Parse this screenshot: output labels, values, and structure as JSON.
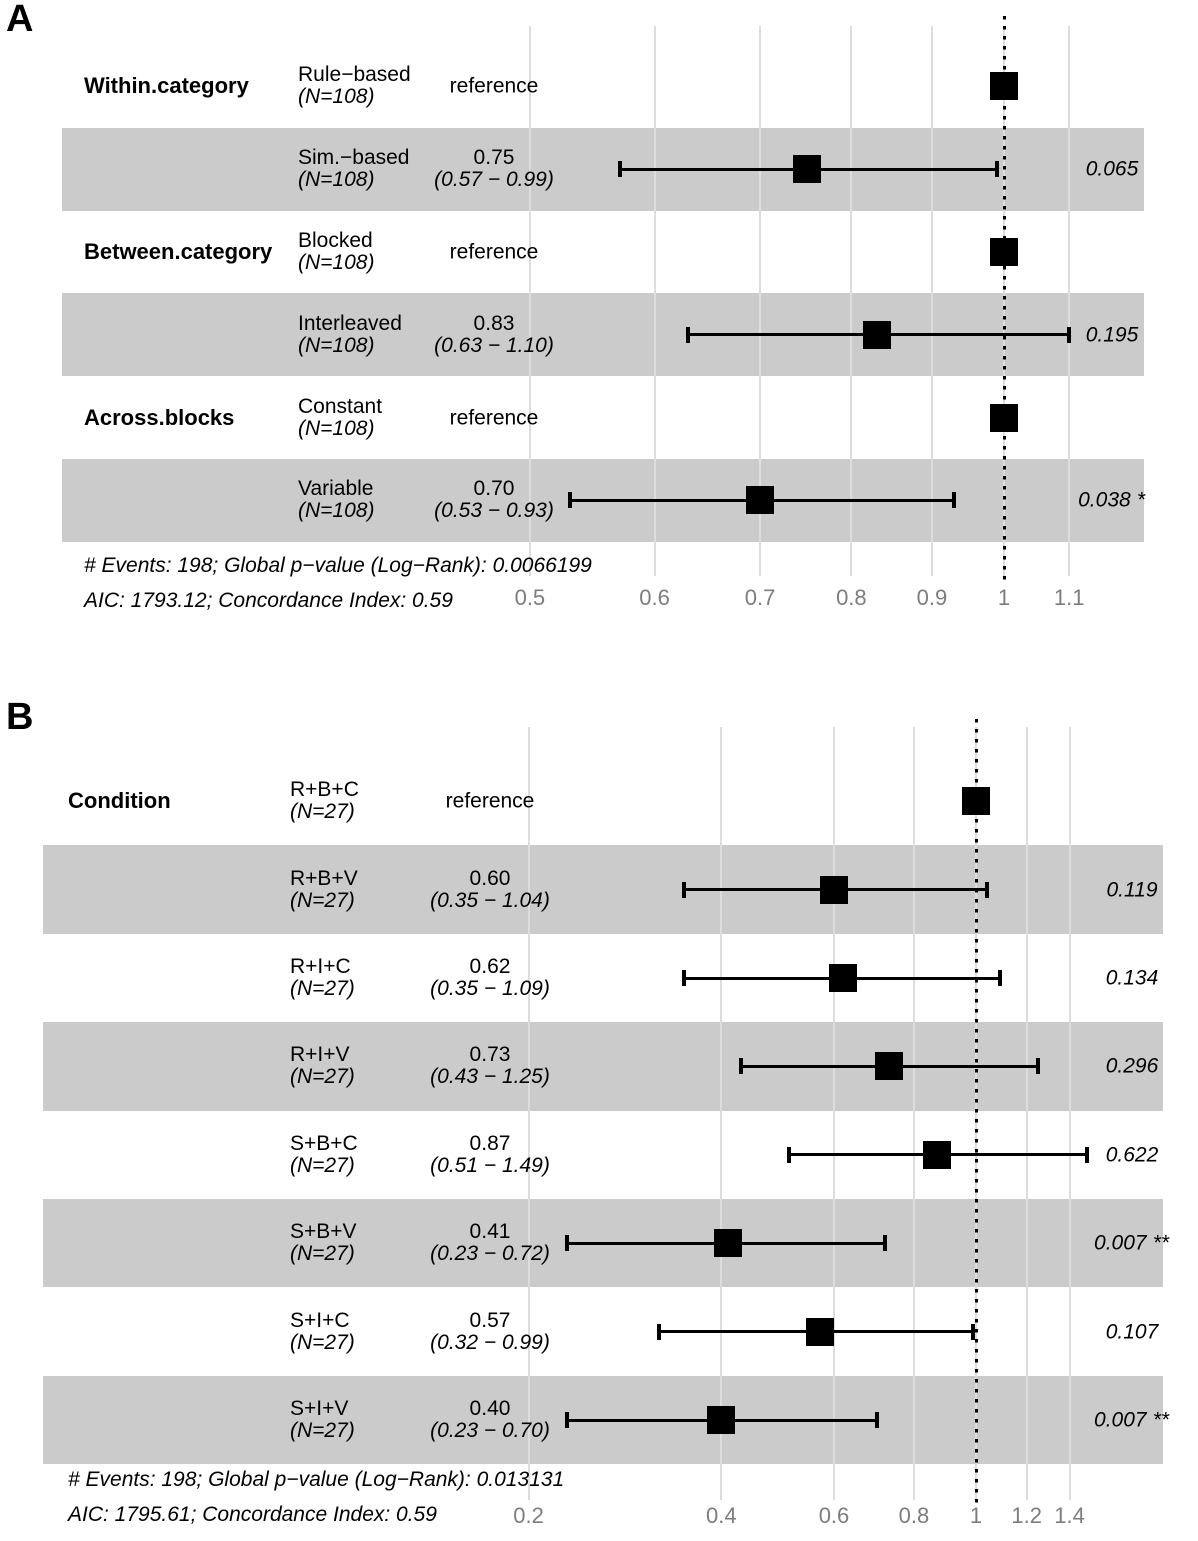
{
  "colors": {
    "background": "#ffffff",
    "band": "#cbcbcb",
    "gridline": "#dddddd",
    "reference_line": "#000000",
    "marker": "#000000",
    "axis_text": "#7d7d7d",
    "text": "#000000"
  },
  "chart_data": [
    {
      "type": "forest",
      "panel_label": "A",
      "x_scale": "log",
      "x_ticks": [
        "0.5",
        "0.6",
        "0.7",
        "0.8",
        "0.9",
        "1",
        "1.1"
      ],
      "x_range": [
        0.45,
        1.22
      ],
      "reference_line": 1,
      "grid": "vertical-on",
      "legend": "none",
      "rows": [
        {
          "variable": "Within.category",
          "level": "Rule−based",
          "n_label": "(N=108)",
          "estimate_label": "reference",
          "hr": 1,
          "reference": true,
          "shaded": false
        },
        {
          "variable": "",
          "level": "Sim.−based",
          "n_label": "(N=108)",
          "hr": 0.75,
          "ci_low": 0.57,
          "ci_high": 0.99,
          "hr_label": "0.75",
          "ci_label": "(0.57 − 0.99)",
          "p": "0.065",
          "stars": "",
          "shaded": true
        },
        {
          "variable": "Between.category",
          "level": "Blocked",
          "n_label": "(N=108)",
          "estimate_label": "reference",
          "hr": 1,
          "reference": true,
          "shaded": false
        },
        {
          "variable": "",
          "level": "Interleaved",
          "n_label": "(N=108)",
          "hr": 0.83,
          "ci_low": 0.63,
          "ci_high": 1.1,
          "hr_label": "0.83",
          "ci_label": "(0.63 − 1.10)",
          "p": "0.195",
          "stars": "",
          "shaded": true
        },
        {
          "variable": "Across.blocks",
          "level": "Constant",
          "n_label": "(N=108)",
          "estimate_label": "reference",
          "hr": 1,
          "reference": true,
          "shaded": false
        },
        {
          "variable": "",
          "level": "Variable",
          "n_label": "(N=108)",
          "hr": 0.7,
          "ci_low": 0.53,
          "ci_high": 0.93,
          "hr_label": "0.70",
          "ci_label": "(0.53 − 0.93)",
          "p": "0.038",
          "stars": "*",
          "shaded": true
        }
      ],
      "footnote_line1": "# Events: 198; Global p−value (Log−Rank): 0.0066199",
      "footnote_line2": "AIC: 1793.12; Concordance Index: 0.59"
    },
    {
      "type": "forest",
      "panel_label": "B",
      "x_scale": "log",
      "x_ticks": [
        "0.2",
        "0.4",
        "0.6",
        "0.8",
        "1",
        "1.2",
        "1.4"
      ],
      "x_range": [
        0.18,
        1.55
      ],
      "reference_line": 1,
      "grid": "vertical-on",
      "legend": "none",
      "rows": [
        {
          "variable": "Condition",
          "level": "R+B+C",
          "n_label": "(N=27)",
          "estimate_label": "reference",
          "hr": 1,
          "reference": true,
          "shaded": false
        },
        {
          "variable": "",
          "level": "R+B+V",
          "n_label": "(N=27)",
          "hr": 0.6,
          "ci_low": 0.35,
          "ci_high": 1.04,
          "hr_label": "0.60",
          "ci_label": "(0.35 − 1.04)",
          "p": "0.119",
          "stars": "",
          "shaded": true
        },
        {
          "variable": "",
          "level": "R+I+C",
          "n_label": "(N=27)",
          "hr": 0.62,
          "ci_low": 0.35,
          "ci_high": 1.09,
          "hr_label": "0.62",
          "ci_label": "(0.35 − 1.09)",
          "p": "0.134",
          "stars": "",
          "shaded": false
        },
        {
          "variable": "",
          "level": "R+I+V",
          "n_label": "(N=27)",
          "hr": 0.73,
          "ci_low": 0.43,
          "ci_high": 1.25,
          "hr_label": "0.73",
          "ci_label": "(0.43 − 1.25)",
          "p": "0.296",
          "stars": "",
          "shaded": true
        },
        {
          "variable": "",
          "level": "S+B+C",
          "n_label": "(N=27)",
          "hr": 0.87,
          "ci_low": 0.51,
          "ci_high": 1.49,
          "hr_label": "0.87",
          "ci_label": "(0.51 − 1.49)",
          "p": "0.622",
          "stars": "",
          "shaded": false
        },
        {
          "variable": "",
          "level": "S+B+V",
          "n_label": "(N=27)",
          "hr": 0.41,
          "ci_low": 0.23,
          "ci_high": 0.72,
          "hr_label": "0.41",
          "ci_label": "(0.23 − 0.72)",
          "p": "0.007",
          "stars": "**",
          "shaded": true
        },
        {
          "variable": "",
          "level": "S+I+C",
          "n_label": "(N=27)",
          "hr": 0.57,
          "ci_low": 0.32,
          "ci_high": 0.99,
          "hr_label": "0.57",
          "ci_label": "(0.32 − 0.99)",
          "p": "0.107",
          "stars": "",
          "shaded": false
        },
        {
          "variable": "",
          "level": "S+I+V",
          "n_label": "(N=27)",
          "hr": 0.4,
          "ci_low": 0.23,
          "ci_high": 0.7,
          "hr_label": "0.40",
          "ci_label": "(0.23 − 0.70)",
          "p": "0.007",
          "stars": "**",
          "shaded": true
        }
      ],
      "footnote_line1": "# Events: 198; Global p−value (Log−Rank): 0.013131",
      "footnote_line2": "AIC: 1795.61; Concordance Index: 0.59"
    }
  ]
}
